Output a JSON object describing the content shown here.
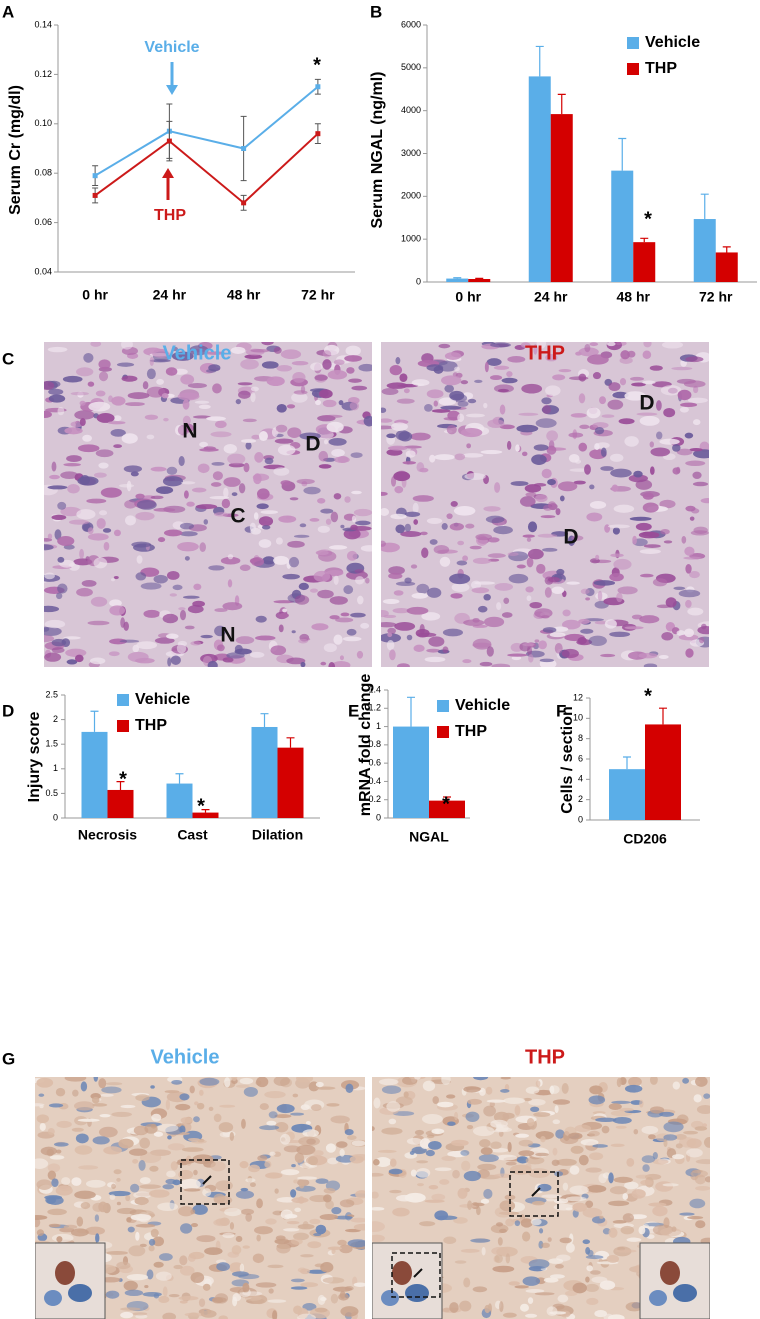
{
  "chart_data": [
    {
      "panel": "A",
      "type": "line",
      "ylabel": "Serum Cr (mg/dl)",
      "categories": [
        "0 hr",
        "24 hr",
        "48 hr",
        "72 hr"
      ],
      "series": [
        {
          "name": "Vehicle",
          "color": "#5aaee8",
          "values": [
            0.079,
            0.097,
            0.09,
            0.115
          ],
          "errors": [
            0.004,
            0.011,
            0.013,
            0.003
          ]
        },
        {
          "name": "THP",
          "color": "#cc1a1a",
          "values": [
            0.071,
            0.093,
            0.068,
            0.096
          ],
          "errors": [
            0.003,
            0.008,
            0.003,
            0.004
          ]
        }
      ],
      "ylim": [
        0.04,
        0.14
      ],
      "yticks": [
        0.04,
        0.06,
        0.08,
        {
          "value": 0.1,
          "label": "0.10"
        },
        0.12,
        0.14
      ],
      "legend": false,
      "annotations": [
        "*"
      ]
    },
    {
      "panel": "B",
      "type": "bar",
      "ylabel": "Serum NGAL (ng/ml)",
      "categories": [
        "0 hr",
        "24 hr",
        "48 hr",
        "72 hr"
      ],
      "series": [
        {
          "name": "Vehicle",
          "color": "#5aaee8",
          "values": [
            80,
            4800,
            2600,
            1470
          ],
          "errors": [
            20,
            700,
            750,
            580
          ]
        },
        {
          "name": "THP",
          "color": "#d40000",
          "values": [
            70,
            3920,
            930,
            690
          ],
          "errors": [
            15,
            460,
            90,
            130
          ]
        }
      ],
      "ylim": [
        0,
        6000
      ],
      "yticks": [
        0,
        1000,
        2000,
        3000,
        4000,
        5000,
        6000
      ],
      "legend": true,
      "annotations": [
        "*"
      ]
    },
    {
      "panel": "D",
      "type": "bar",
      "ylabel": "Injury score",
      "categories": [
        "Necrosis",
        "Cast",
        "Dilation"
      ],
      "series": [
        {
          "name": "Vehicle",
          "color": "#5aaee8",
          "values": [
            1.75,
            0.7,
            1.85
          ],
          "errors": [
            0.42,
            0.2,
            0.27
          ]
        },
        {
          "name": "THP",
          "color": "#d40000",
          "values": [
            0.57,
            0.11,
            1.43
          ],
          "errors": [
            0.17,
            0.06,
            0.2
          ]
        }
      ],
      "ylim": [
        0,
        2.5
      ],
      "yticks": [
        0,
        0.5,
        1,
        1.5,
        2,
        2.5
      ],
      "legend": true,
      "annotations": [
        "*",
        "*"
      ]
    },
    {
      "panel": "E",
      "type": "bar",
      "ylabel": "mRNA fold change",
      "categories": [
        "NGAL"
      ],
      "series": [
        {
          "name": "Vehicle",
          "color": "#5aaee8",
          "values": [
            1.0
          ],
          "errors": [
            0.32
          ]
        },
        {
          "name": "THP",
          "color": "#d40000",
          "values": [
            0.19
          ],
          "errors": [
            0.04
          ]
        }
      ],
      "ylim": [
        0,
        1.4
      ],
      "yticks": [
        0,
        0.2,
        0.4,
        0.6,
        0.8,
        1,
        1.2,
        1.4
      ],
      "legend": true,
      "annotations": [
        "*"
      ]
    },
    {
      "panel": "F",
      "type": "bar",
      "ylabel": "Cells / section",
      "categories": [
        "CD206"
      ],
      "series": [
        {
          "name": "Vehicle",
          "color": "#5aaee8",
          "values": [
            5.0
          ],
          "errors": [
            1.2
          ]
        },
        {
          "name": "THP",
          "color": "#d40000",
          "values": [
            9.4
          ],
          "errors": [
            1.6
          ]
        }
      ],
      "ylim": [
        0,
        12
      ],
      "yticks": [
        0,
        2,
        4,
        6,
        8,
        10,
        12
      ],
      "legend": false,
      "annotations": [
        "*"
      ]
    }
  ],
  "micrographs": [
    {
      "panel": "C",
      "images": [
        {
          "title": "Vehicle",
          "labels": [
            "N",
            "D",
            "C",
            "N"
          ]
        },
        {
          "title": "THP",
          "labels": [
            "D",
            "D"
          ]
        }
      ]
    },
    {
      "panel": "G",
      "images": [
        {
          "title": "Vehicle",
          "labels": []
        },
        {
          "title": "THP",
          "labels": []
        }
      ]
    }
  ]
}
